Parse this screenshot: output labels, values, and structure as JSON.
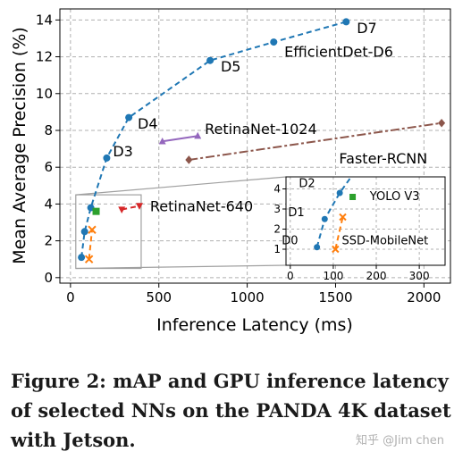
{
  "caption": "Figure 2: mAP and GPU inference latency of selected NNs on the PANDA 4K dataset with Jetson.",
  "watermark": "知乎 @Jim chen",
  "chart_data": {
    "type": "line",
    "xlabel": "Inference Latency (ms)",
    "ylabel": "Mean Average Precision (%)",
    "xlim": [
      -60,
      2150
    ],
    "ylim": [
      -0.3,
      14.6
    ],
    "xticks": [
      0,
      500,
      1000,
      1500,
      2000
    ],
    "yticks": [
      0,
      2,
      4,
      6,
      8,
      10,
      12,
      14
    ],
    "grid": true,
    "series": [
      {
        "name": "EfficientDet",
        "color": "#1f77b4",
        "marker": "circle",
        "dash": "6,4",
        "x": [
          62,
          80,
          115,
          205,
          330,
          790,
          1150,
          1560
        ],
        "y": [
          1.1,
          2.5,
          3.8,
          6.5,
          8.7,
          11.8,
          12.8,
          13.9
        ]
      },
      {
        "name": "SSD-MobileNet",
        "color": "#ff7f0e",
        "marker": "x",
        "dash": "6,4",
        "x": [
          105,
          122
        ],
        "y": [
          1.0,
          2.6
        ]
      },
      {
        "name": "YOLO V3",
        "color": "#2ca02c",
        "marker": "square",
        "dash": "",
        "x": [
          145
        ],
        "y": [
          3.6
        ]
      },
      {
        "name": "RetinaNet-640",
        "color": "#d62728",
        "marker": "tri-down",
        "dash": "6,4",
        "x": [
          290,
          390
        ],
        "y": [
          3.7,
          3.9
        ]
      },
      {
        "name": "RetinaNet-1024",
        "color": "#9467bd",
        "marker": "tri-up",
        "dash": "",
        "x": [
          520,
          720
        ],
        "y": [
          7.4,
          7.7
        ]
      },
      {
        "name": "Faster-RCNN",
        "color": "#8c564b",
        "marker": "diamond",
        "dash": "10,3,3,3",
        "x": [
          670,
          2100
        ],
        "y": [
          6.4,
          8.4
        ]
      }
    ],
    "annotations": [
      {
        "text": "D7",
        "x": 1620,
        "y": 13.3
      },
      {
        "text": "EfficientDet-D6",
        "x": 1210,
        "y": 12.0
      },
      {
        "text": "D5",
        "x": 850,
        "y": 11.2
      },
      {
        "text": "D4",
        "x": 380,
        "y": 8.1
      },
      {
        "text": "RetinaNet-1024",
        "x": 760,
        "y": 7.8
      },
      {
        "text": "D3",
        "x": 240,
        "y": 6.6
      },
      {
        "text": "Faster-RCNN",
        "x": 1520,
        "y": 6.2
      },
      {
        "text": "RetinaNet-640",
        "x": 450,
        "y": 3.6
      }
    ],
    "inset": {
      "xlim": [
        -10,
        360
      ],
      "ylim": [
        0.2,
        4.6
      ],
      "xticks": [
        0,
        100,
        200,
        300
      ],
      "yticks": [
        1,
        2,
        3,
        4
      ],
      "zoom_region": {
        "x": [
          30,
          400
        ],
        "y": [
          0.5,
          4.5
        ]
      },
      "series": [
        {
          "name": "EfficientDet",
          "color": "#1f77b4",
          "marker": "circle",
          "dash": "6,4",
          "x": [
            62,
            80,
            115,
            205
          ],
          "y": [
            1.1,
            2.5,
            3.8,
            6.5
          ]
        },
        {
          "name": "SSD-MobileNet",
          "color": "#ff7f0e",
          "marker": "x",
          "dash": "6,4",
          "x": [
            105,
            122
          ],
          "y": [
            1.0,
            2.6
          ]
        },
        {
          "name": "YOLO V3",
          "color": "#2ca02c",
          "marker": "square",
          "dash": "",
          "x": [
            145
          ],
          "y": [
            3.6
          ]
        }
      ],
      "annotations": [
        {
          "text": "D2",
          "x": 20,
          "y": 4.1
        },
        {
          "text": "YOLO V3",
          "x": 185,
          "y": 3.45
        },
        {
          "text": "D1",
          "x": -5,
          "y": 2.65
        },
        {
          "text": "D0",
          "x": -20,
          "y": 1.25
        },
        {
          "text": "SSD-MobileNet",
          "x": 120,
          "y": 1.25
        }
      ]
    }
  }
}
